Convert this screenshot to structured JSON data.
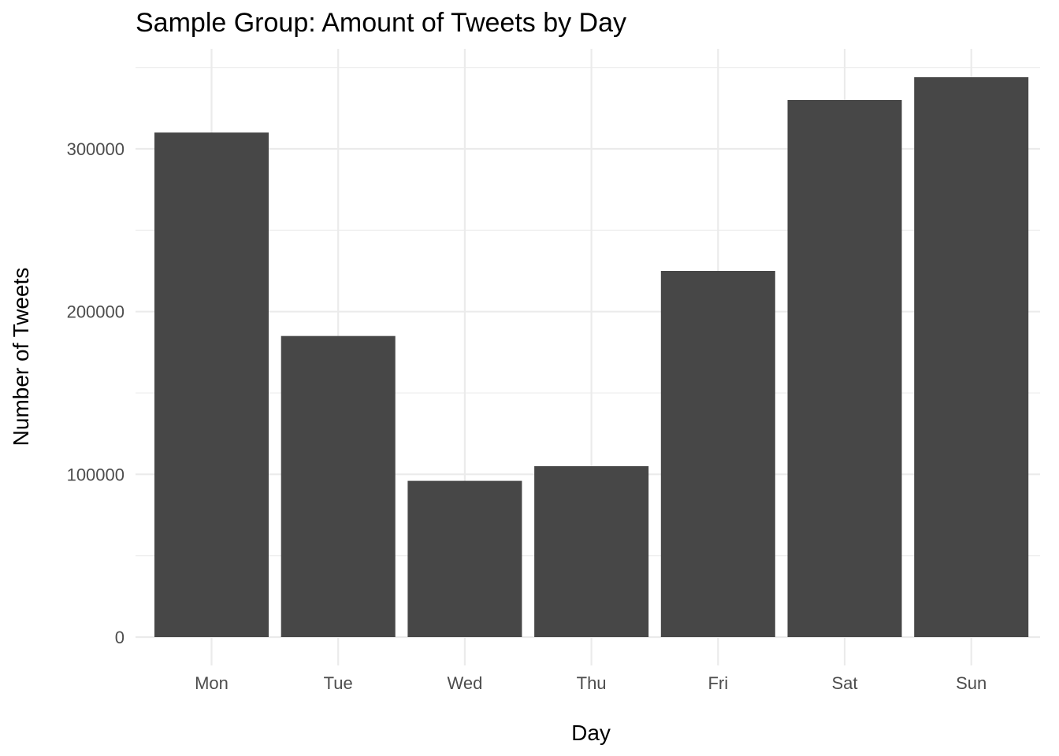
{
  "chart_data": {
    "type": "bar",
    "title": "Sample Group: Amount of Tweets by Day",
    "xlabel": "Day",
    "ylabel": "Number of Tweets",
    "categories": [
      "Mon",
      "Tue",
      "Wed",
      "Thu",
      "Fri",
      "Sat",
      "Sun"
    ],
    "values": [
      310000,
      185000,
      96000,
      105000,
      225000,
      330000,
      344000
    ],
    "ylim": [
      0,
      350000
    ],
    "yticks": [
      0,
      100000,
      200000,
      300000
    ],
    "ytick_labels": [
      "0",
      "100000",
      "200000",
      "300000"
    ],
    "grid": true,
    "legend": "none",
    "bar_color": "#474747"
  }
}
